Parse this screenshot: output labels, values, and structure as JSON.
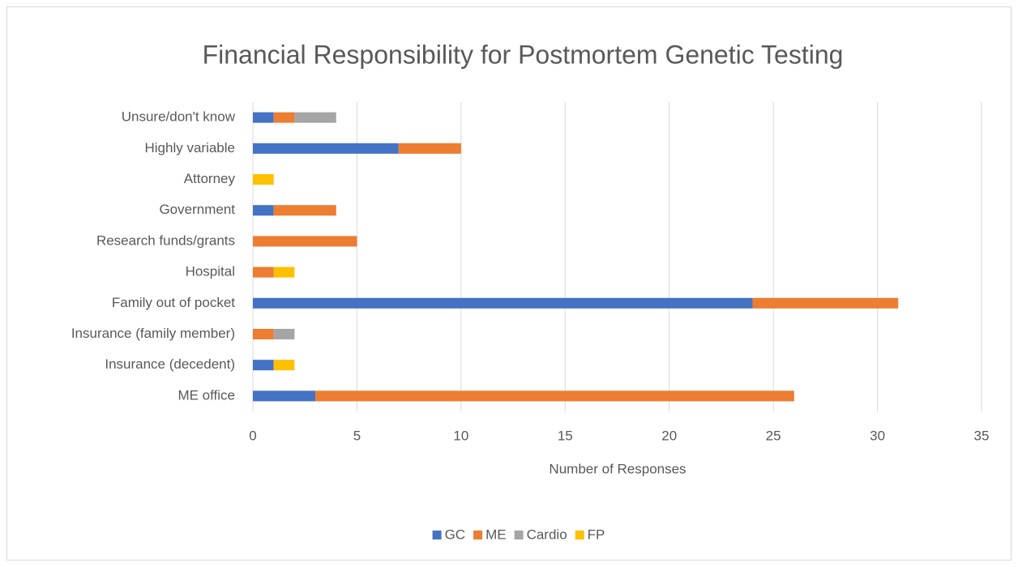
{
  "chart_data": {
    "type": "stacked_barh",
    "title": "Financial Responsibility for Postmortem Genetic Testing",
    "x_label": "Number of Responses",
    "categories": [
      "Unsure/don't know",
      "Highly variable",
      "Attorney",
      "Government",
      "Research funds/grants",
      "Hospital",
      "Family out of pocket",
      "Insurance (family member)",
      "Insurance (decedent)",
      "ME office"
    ],
    "series": [
      {
        "name": "GC",
        "color": "#4472c4",
        "values": [
          1,
          7,
          0,
          1,
          0,
          0,
          24,
          0,
          1,
          3
        ]
      },
      {
        "name": "ME",
        "color": "#ed7d31",
        "values": [
          1,
          3,
          0,
          3,
          5,
          1,
          7,
          1,
          0,
          23
        ]
      },
      {
        "name": "Cardio",
        "color": "#a5a5a5",
        "values": [
          2,
          0,
          0,
          0,
          0,
          0,
          0,
          1,
          0,
          0
        ]
      },
      {
        "name": "FP",
        "color": "#ffc000",
        "values": [
          0,
          0,
          1,
          0,
          0,
          1,
          0,
          0,
          1,
          0
        ]
      }
    ],
    "xlim": [
      0,
      35
    ],
    "xticks": [
      0,
      5,
      10,
      15,
      20,
      25,
      30,
      35
    ],
    "grid": true,
    "legend": "bottom"
  }
}
